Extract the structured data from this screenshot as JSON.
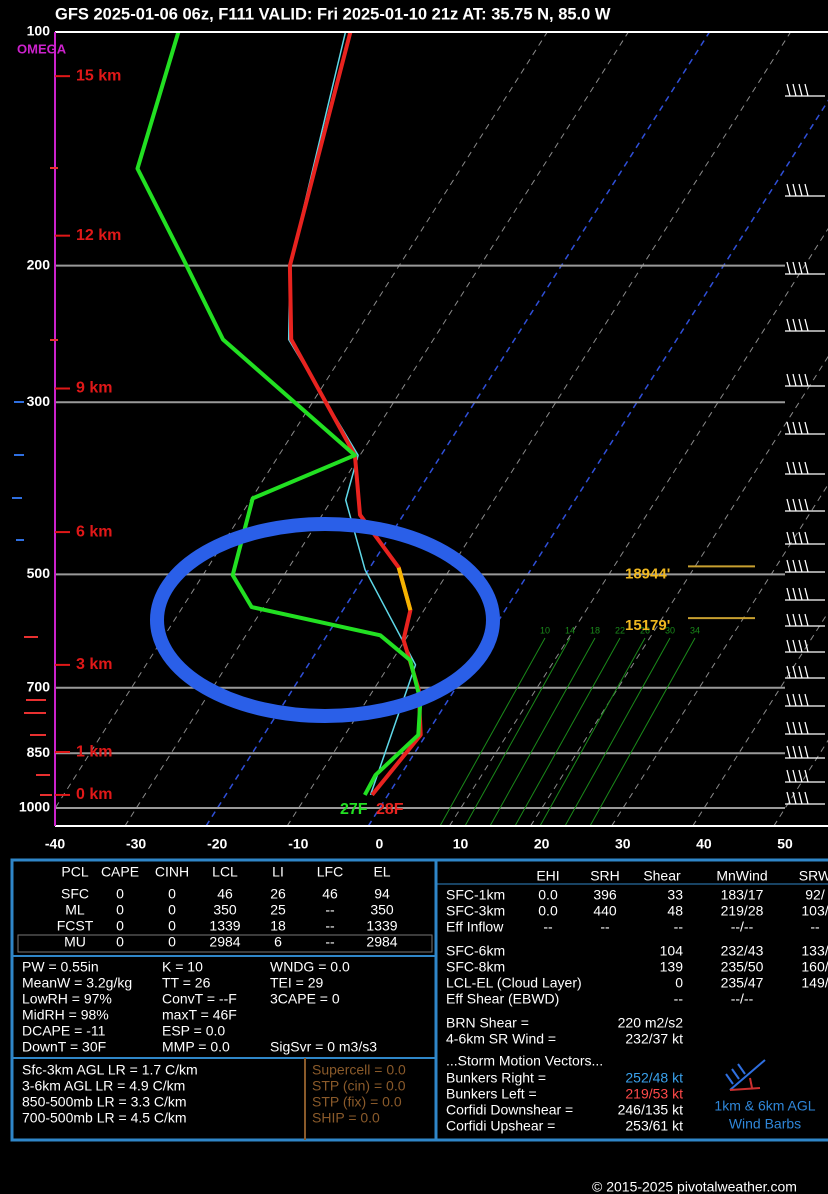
{
  "chart_data": {
    "type": "skewt",
    "title": "GFS 2025-01-06 06z, F111  VALID: Fri 2025-01-10 21z  AT: 35.75 N, 85.0 W",
    "xlim": [
      -40,
      50
    ],
    "xticks": [
      -40,
      -30,
      -20,
      -10,
      0,
      10,
      20,
      30,
      40,
      50
    ],
    "ylim": [
      1000,
      100
    ],
    "yticks": [
      100,
      200,
      300,
      500,
      700,
      850,
      1000
    ],
    "y_log": true,
    "grid": true,
    "highlight_isotherms": [
      -20,
      0
    ],
    "omega_label": "OMEGA",
    "series": [
      {
        "color": "#5fd8e8",
        "x": [
          -2.1,
          -6.5,
          -20.0,
          -27.7,
          -29.6,
          -47.0,
          -52.5,
          -63.5
        ],
        "y": [
          962,
          654,
          493,
          401,
          351,
          249,
          200,
          100
        ]
      },
      {
        "color": "#e8231f",
        "x": [
          -1.9,
          -0.5,
          -4.2,
          -9.9,
          -11.3,
          -16.0,
          -24.8,
          -30.0,
          -46.7,
          -52.5,
          -62.9
        ],
        "y": [
          962,
          805,
          704,
          607,
          556,
          490,
          419,
          351,
          249,
          200,
          100
        ]
      },
      {
        "color": "#f5b400",
        "x": [
          -11.3,
          -16.0
        ],
        "y": [
          556,
          490
        ]
      },
      {
        "color": "#22e022",
        "x": [
          -2.8,
          -3.0,
          -0.8,
          -3.2,
          -7.5,
          -13.1,
          -31.1,
          -35.9,
          -39.3,
          -30.0,
          -55.1,
          -65.7,
          -78.7,
          -84.1
        ],
        "y": [
          962,
          907,
          805,
          726,
          645,
          599,
          551,
          501,
          399,
          351,
          249,
          198,
          150,
          100
        ]
      }
    ],
    "surface_labels": [
      {
        "text": "27F",
        "color": "#22e022"
      },
      {
        "text": "28F",
        "color": "#e8231f"
      }
    ],
    "height_markers": [
      {
        "label": "15 km",
        "pressure": 114
      },
      {
        "label": "12 km",
        "pressure": 183
      },
      {
        "label": "9 km",
        "pressure": 288
      },
      {
        "label": "6 km",
        "pressure": 441
      },
      {
        "label": "3 km",
        "pressure": 654
      },
      {
        "label": "1 km",
        "pressure": 847
      },
      {
        "label": "0 km",
        "pressure": 962
      }
    ],
    "level_markers": [
      {
        "label": "18944'",
        "pressure": 500
      },
      {
        "label": "15179'",
        "pressure": 583
      }
    ],
    "mixing_ratio_labels": [
      10,
      14,
      18,
      22,
      26,
      30,
      34
    ]
  },
  "parcel_table": {
    "header": [
      "PCL",
      "CAPE",
      "CINH",
      "LCL",
      "LI",
      "LFC",
      "EL"
    ],
    "rows": [
      [
        "SFC",
        "0",
        "0",
        "46",
        "26",
        "46",
        "94"
      ],
      [
        "ML",
        "0",
        "0",
        "350",
        "25",
        "--",
        "350"
      ],
      [
        "FCST",
        "0",
        "0",
        "1339",
        "18",
        "--",
        "1339"
      ],
      [
        "MU",
        "0",
        "0",
        "2984",
        "6",
        "--",
        "2984"
      ]
    ]
  },
  "indices": [
    [
      "PW = 0.55in",
      "K = 10",
      "WNDG = 0.0"
    ],
    [
      "MeanW = 3.2g/kg",
      "TT = 26",
      "TEI = 29"
    ],
    [
      "LowRH = 97%",
      "ConvT = --F",
      "3CAPE = 0"
    ],
    [
      "MidRH = 98%",
      "maxT = 46F"
    ],
    [
      "DCAPE = -11",
      "ESP = 0.0"
    ],
    [
      "DownT = 30F",
      "MMP = 0.0",
      "SigSvr = 0 m3/s3"
    ]
  ],
  "lapse_rates": [
    "Sfc-3km AGL LR = 1.7 C/km",
    "3-6km AGL LR = 4.9 C/km",
    "850-500mb LR = 3.3 C/km",
    "700-500mb LR = 4.5 C/km"
  ],
  "composite": [
    "Supercell = 0.0",
    "STP (cin) = 0.0",
    "STP (fix) = 0.0",
    "SHIP = 0.0"
  ],
  "kinematics": {
    "header": [
      "EHI",
      "SRH",
      "Shear",
      "MnWind",
      "SRW"
    ],
    "rows": [
      {
        "label": "SFC-1km",
        "cells": [
          "0.0",
          "396",
          "33",
          "183/17",
          "92/"
        ]
      },
      {
        "label": "SFC-3km",
        "cells": [
          "0.0",
          "440",
          "48",
          "219/28",
          "103/"
        ]
      },
      {
        "label": "Eff Inflow",
        "cells": [
          "--",
          "--",
          "--",
          "--/--",
          "--"
        ]
      },
      {
        "label": "SFC-6km",
        "cells": [
          null,
          null,
          "104",
          "232/43",
          "133/"
        ]
      },
      {
        "label": "SFC-8km",
        "cells": [
          null,
          null,
          "139",
          "235/50",
          "160/"
        ]
      },
      {
        "label": "LCL-EL (Cloud Layer)",
        "cells": [
          null,
          null,
          "0",
          "235/47",
          "149/"
        ]
      },
      {
        "label": "Eff Shear (EBWD)",
        "cells": [
          null,
          null,
          "--",
          "--/--",
          null
        ]
      }
    ]
  },
  "shear_params": [
    [
      "BRN Shear =",
      "220 m2/s2"
    ],
    [
      "4-6km SR Wind =",
      "232/37 kt"
    ]
  ],
  "storm_motion": {
    "title": "...Storm Motion Vectors...",
    "rows": [
      {
        "label": "Bunkers Right =",
        "value": "252/48 kt",
        "color": "#3aa0ea"
      },
      {
        "label": "Bunkers Left =",
        "value": "219/53 kt",
        "color": "#ff4a4a"
      },
      {
        "label": "Corfidi Downshear =",
        "value": "246/135 kt",
        "color": "#ffffff"
      },
      {
        "label": "Corfidi Upshear =",
        "value": "253/61 kt",
        "color": "#ffffff"
      }
    ]
  },
  "barb_legend": [
    "1km & 6km AGL",
    "Wind Barbs"
  ],
  "footer": "© 2015-2025 pivotalweather.com"
}
